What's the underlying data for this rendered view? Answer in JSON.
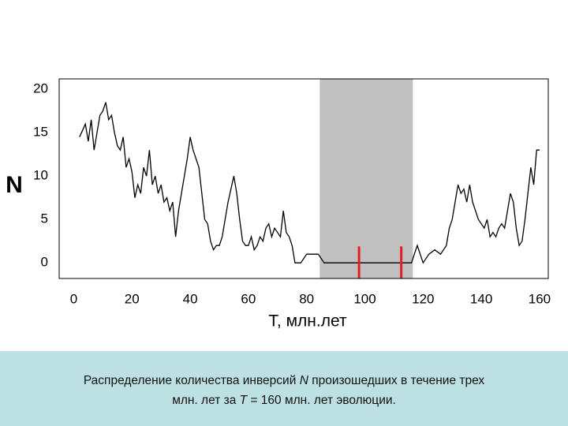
{
  "chart_data": {
    "type": "line",
    "ylabel": "N",
    "xlabel": "Т, млн.лет",
    "x": [
      2,
      4,
      5,
      6,
      7,
      8,
      9,
      10,
      11,
      12,
      13,
      14,
      15,
      16,
      17,
      18,
      19,
      20,
      21,
      22,
      23,
      24,
      25,
      26,
      27,
      28,
      29,
      30,
      31,
      32,
      33,
      34,
      35,
      36,
      37,
      38,
      39,
      40,
      41,
      42,
      43,
      44,
      45,
      46,
      47,
      48,
      49,
      50,
      51,
      52,
      53,
      54,
      55,
      56,
      57,
      58,
      59,
      60,
      61,
      62,
      63,
      64,
      65,
      66,
      67,
      68,
      69,
      70,
      71,
      72,
      73,
      74,
      75,
      76,
      78,
      80,
      82,
      84,
      86,
      116,
      118,
      120,
      122,
      124,
      126,
      128,
      129,
      130,
      131,
      132,
      133,
      134,
      135,
      136,
      137,
      138,
      139,
      140,
      141,
      142,
      143,
      144,
      145,
      146,
      147,
      148,
      149,
      150,
      151,
      152,
      153,
      154,
      155,
      156,
      157,
      158,
      159,
      160
    ],
    "values": [
      14.5,
      16,
      14,
      16.5,
      13,
      15,
      17,
      17.5,
      18.5,
      16.5,
      17,
      15,
      13.5,
      13,
      14.5,
      11,
      12,
      10.5,
      7.5,
      9,
      8,
      11,
      10,
      13,
      9,
      10,
      8,
      9,
      7,
      7.5,
      6,
      7,
      3,
      6,
      8,
      10,
      12,
      14.5,
      13,
      12,
      11,
      8,
      5,
      4.5,
      2.5,
      1.5,
      2,
      2,
      3,
      5,
      7,
      8.5,
      10,
      8,
      5,
      2.5,
      2,
      2,
      3,
      1.5,
      2,
      3,
      2.5,
      4,
      4.5,
      3,
      4,
      3.5,
      3,
      6,
      3.5,
      3,
      2,
      0,
      0,
      1,
      1,
      1,
      0,
      0,
      2,
      0,
      1,
      1.5,
      1,
      2,
      4,
      5,
      7,
      9,
      8,
      8.5,
      7,
      9,
      7,
      6,
      5,
      4.5,
      4,
      5,
      3,
      3.5,
      3,
      4,
      4.5,
      4,
      6,
      8,
      7,
      4,
      2,
      2.5,
      5,
      8,
      11,
      9,
      13,
      13
    ],
    "color": "#000000",
    "xlim": [
      -5,
      163
    ],
    "ylim": [
      -1.8,
      21.2
    ],
    "xticks": [
      0,
      20,
      40,
      60,
      80,
      100,
      120,
      140,
      160
    ],
    "yticks": [
      0,
      5,
      10,
      15,
      20
    ],
    "grid": false,
    "shaded_span": [
      84.5,
      116.5
    ],
    "shade_color": "#c0c0c0",
    "markers": [
      98,
      112.5
    ],
    "marker_top": 1.9,
    "marker_color": "#e0201c"
  },
  "caption": {
    "lines": [
      [
        "Распределение количества инверсий",
        "N",
        "произошедших в течение трех"
      ],
      [
        "млн. лет за",
        "T",
        "= 160 млн. лет эволюции."
      ]
    ]
  }
}
